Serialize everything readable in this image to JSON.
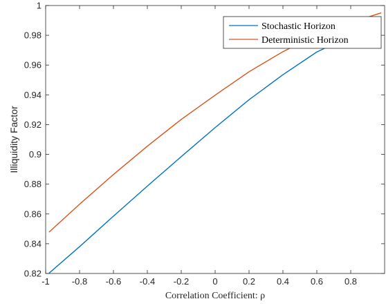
{
  "chart_data": {
    "type": "line",
    "xlabel": "Correlation Coefficient: ρ",
    "ylabel": "Illiquidity Factor",
    "xlim": [
      -1,
      1
    ],
    "ylim": [
      0.82,
      1
    ],
    "xticks": [
      -1,
      -0.8,
      -0.6,
      -0.4,
      -0.2,
      0,
      0.2,
      0.4,
      0.6,
      0.8
    ],
    "xtick_labels": [
      "-1",
      "-0.8",
      "-0.6",
      "-0.4",
      "-0.2",
      "0",
      "0.2",
      "0.4",
      "0.6",
      "0.8"
    ],
    "yticks": [
      0.82,
      0.84,
      0.86,
      0.88,
      0.9,
      0.92,
      0.94,
      0.96,
      0.98,
      1
    ],
    "ytick_labels": [
      "0.82",
      "0.84",
      "0.86",
      "0.88",
      "0.9",
      "0.92",
      "0.94",
      "0.96",
      "0.98",
      "1"
    ],
    "grid": false,
    "legend_position": "top-right",
    "series": [
      {
        "name": "Stochastic Horizon",
        "color": "#0072BD",
        "x": [
          -0.98,
          -0.8,
          -0.6,
          -0.4,
          -0.2,
          0,
          0.2,
          0.4,
          0.6,
          0.8,
          0.98
        ],
        "y": [
          0.8202,
          0.838,
          0.8585,
          0.8787,
          0.8985,
          0.918,
          0.9367,
          0.9535,
          0.9688,
          0.9795,
          0.9862
        ]
      },
      {
        "name": "Deterministic Horizon",
        "color": "#D95319",
        "x": [
          -0.98,
          -0.8,
          -0.6,
          -0.4,
          -0.2,
          0,
          0.2,
          0.4,
          0.6,
          0.8,
          0.98
        ],
        "y": [
          0.8478,
          0.8665,
          0.8865,
          0.9055,
          0.9235,
          0.9398,
          0.9555,
          0.969,
          0.9805,
          0.9885,
          0.9951
        ]
      }
    ]
  }
}
